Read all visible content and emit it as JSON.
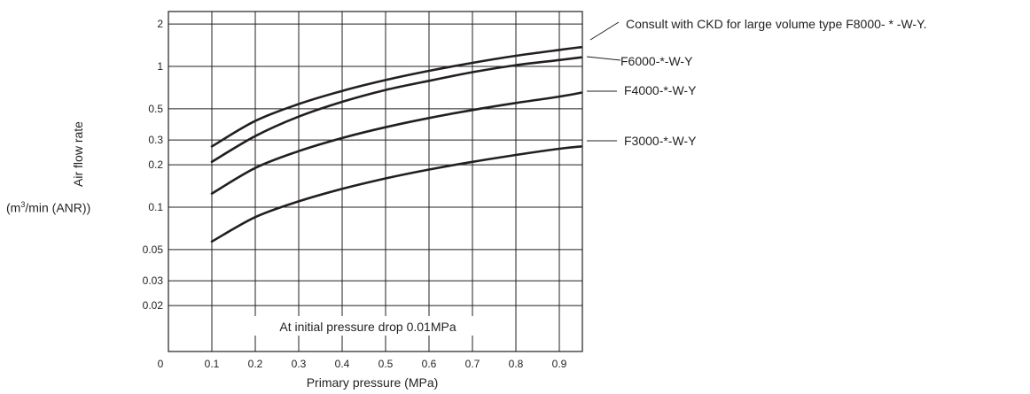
{
  "chart_data": {
    "type": "line",
    "title": "",
    "xlabel": "Primary pressure (MPa)",
    "ylabel": "Air flow rate",
    "ylabel_unit_prefix": "(m",
    "ylabel_unit_sup": "3",
    "ylabel_unit_suffix": "/min (ANR))",
    "y_scale": "log",
    "grid": true,
    "xlim": [
      0,
      0.95
    ],
    "x_ticks": [
      "0",
      "0.1",
      "0.2",
      "0.3",
      "0.4",
      "0.5",
      "0.6",
      "0.7",
      "0.8",
      "0.9"
    ],
    "x_tick_values": [
      0,
      0.1,
      0.2,
      0.3,
      0.4,
      0.5,
      0.6,
      0.7,
      0.8,
      0.9
    ],
    "y_ticks": [
      "2",
      "1",
      "0.5",
      "0.3",
      "0.2",
      "0.1",
      "0.05",
      "0.03",
      "0.02"
    ],
    "y_tick_values": [
      2,
      1,
      0.5,
      0.3,
      0.2,
      0.1,
      0.05,
      0.03,
      0.02
    ],
    "annotation": "At initial pressure drop 0.01MPa",
    "series": [
      {
        "name": "Consult with CKD for large volume type F8000- * -W-Y.",
        "x": [
          0.1,
          0.2,
          0.3,
          0.4,
          0.5,
          0.6,
          0.7,
          0.8,
          0.9,
          0.95
        ],
        "y": [
          0.27,
          0.41,
          0.54,
          0.67,
          0.8,
          0.93,
          1.06,
          1.19,
          1.31,
          1.37
        ]
      },
      {
        "name": "F6000-*-W-Y",
        "x": [
          0.1,
          0.2,
          0.3,
          0.4,
          0.5,
          0.6,
          0.7,
          0.8,
          0.9,
          0.95
        ],
        "y": [
          0.21,
          0.32,
          0.44,
          0.56,
          0.68,
          0.79,
          0.91,
          1.02,
          1.11,
          1.16
        ]
      },
      {
        "name": "F4000-*-W-Y",
        "x": [
          0.1,
          0.2,
          0.3,
          0.4,
          0.5,
          0.6,
          0.7,
          0.8,
          0.9,
          0.95
        ],
        "y": [
          0.125,
          0.19,
          0.25,
          0.31,
          0.37,
          0.43,
          0.49,
          0.55,
          0.61,
          0.65
        ]
      },
      {
        "name": "F3000-*-W-Y",
        "x": [
          0.1,
          0.2,
          0.3,
          0.4,
          0.5,
          0.6,
          0.7,
          0.8,
          0.9,
          0.95
        ],
        "y": [
          0.057,
          0.085,
          0.11,
          0.135,
          0.16,
          0.185,
          0.21,
          0.235,
          0.26,
          0.27
        ]
      }
    ]
  }
}
